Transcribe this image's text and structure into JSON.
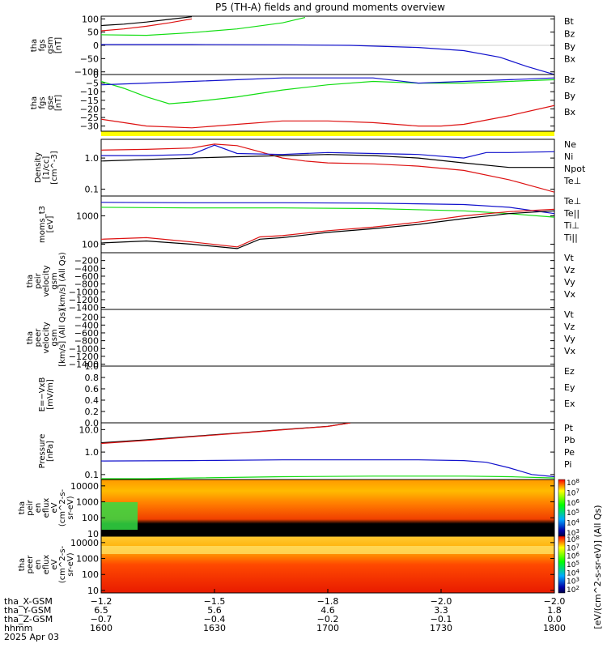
{
  "title": "P5 (TH-A) fields and ground moments overview",
  "colors": {
    "black": "#000000",
    "red": "#dd1111",
    "green": "#11dd11",
    "blue": "#1111cc",
    "yellow": "#ffff00"
  },
  "chart_data": [
    {
      "type": "line",
      "panel": "fgs_gsm",
      "ylabel_lines": [
        "tha",
        "fgs",
        "gsm",
        "[nT]"
      ],
      "ylim": [
        -110,
        110
      ],
      "yticks": [
        "100",
        "50",
        "0",
        "−50",
        "−100"
      ],
      "legend": [
        {
          "name": "Bt",
          "color": "black"
        },
        {
          "name": "Bz",
          "color": "red"
        },
        {
          "name": "By",
          "color": "green"
        },
        {
          "name": "Bx",
          "color": "blue"
        }
      ],
      "series": [
        {
          "name": "Bt",
          "color": "black",
          "x": [
            0,
            0.05,
            0.1,
            0.15,
            0.2
          ],
          "y": [
            75,
            80,
            88,
            98,
            108
          ]
        },
        {
          "name": "Bz",
          "color": "red",
          "x": [
            0,
            0.05,
            0.1,
            0.15,
            0.2
          ],
          "y": [
            55,
            62,
            72,
            85,
            100
          ]
        },
        {
          "name": "By",
          "color": "green",
          "x": [
            0,
            0.1,
            0.2,
            0.3,
            0.4,
            0.45
          ],
          "y": [
            40,
            38,
            48,
            62,
            85,
            105
          ]
        },
        {
          "name": "Bx",
          "color": "blue",
          "x": [
            0,
            0.2,
            0.4,
            0.55,
            0.7,
            0.8,
            0.88,
            0.94,
            1.0
          ],
          "y": [
            3,
            3,
            2,
            0,
            -8,
            -20,
            -45,
            -80,
            -110
          ]
        }
      ]
    },
    {
      "type": "line",
      "panel": "fgs_gse",
      "ylabel_lines": [
        "tha",
        "fgs",
        "gse",
        "[nT]"
      ],
      "ylim": [
        -33,
        0
      ],
      "yticks": [
        "0",
        "−5",
        "−10",
        "−15",
        "−20",
        "−25",
        "−30"
      ],
      "legend": [
        {
          "name": "Bz",
          "color": "red"
        },
        {
          "name": "By",
          "color": "green"
        },
        {
          "name": "Bx",
          "color": "blue"
        }
      ],
      "series": [
        {
          "name": "Bz",
          "color": "red",
          "x": [
            0,
            0.05,
            0.1,
            0.2,
            0.3,
            0.4,
            0.5,
            0.6,
            0.7,
            0.75,
            0.8,
            0.9,
            1.0
          ],
          "y": [
            -26,
            -28,
            -30,
            -31,
            -29,
            -27,
            -27,
            -28,
            -30,
            -30,
            -29,
            -24,
            -18
          ]
        },
        {
          "name": "By",
          "color": "green",
          "x": [
            0,
            0.05,
            0.1,
            0.15,
            0.2,
            0.3,
            0.4,
            0.5,
            0.6,
            0.7,
            0.8,
            0.9,
            1.0
          ],
          "y": [
            -4,
            -8,
            -13,
            -17,
            -16,
            -13,
            -9,
            -6,
            -4,
            -5,
            -5,
            -4,
            -3
          ]
        },
        {
          "name": "Bx",
          "color": "blue",
          "x": [
            0,
            0.1,
            0.2,
            0.3,
            0.4,
            0.5,
            0.6,
            0.7,
            0.8,
            0.9,
            1.0
          ],
          "y": [
            -6,
            -5,
            -4,
            -3,
            -2,
            -2,
            -2,
            -5,
            -4,
            -3,
            -2
          ]
        }
      ]
    },
    {
      "type": "line",
      "panel": "density",
      "ylabel_lines": [
        "Density",
        "[1/cc]",
        "[cm^-3]"
      ],
      "scale": "log",
      "ylim": [
        0.06,
        4
      ],
      "yticks": [
        "1.0",
        "0.1"
      ],
      "legend": [
        {
          "name": "Ne",
          "color": "red"
        },
        {
          "name": "Ni",
          "color": "black"
        },
        {
          "name": "Npot",
          "color": "blue"
        },
        {
          "name": "Te⊥",
          "color": "red"
        }
      ],
      "series": [
        {
          "name": "Ne",
          "color": "red",
          "x": [
            0,
            0.1,
            0.2,
            0.25,
            0.3,
            0.35,
            0.4,
            0.45,
            0.5,
            0.6,
            0.7,
            0.8,
            0.9,
            1.0
          ],
          "y": [
            1.8,
            1.9,
            2.1,
            2.8,
            2.5,
            1.6,
            1.0,
            0.8,
            0.7,
            0.65,
            0.55,
            0.4,
            0.2,
            0.08
          ]
        },
        {
          "name": "Ni",
          "color": "black",
          "x": [
            0,
            0.1,
            0.2,
            0.3,
            0.4,
            0.5,
            0.6,
            0.7,
            0.8,
            0.9,
            1.0
          ],
          "y": [
            0.8,
            0.9,
            1.0,
            1.1,
            1.2,
            1.3,
            1.2,
            1.0,
            0.7,
            0.5,
            0.5
          ]
        },
        {
          "name": "Npot",
          "color": "blue",
          "x": [
            0,
            0.1,
            0.2,
            0.25,
            0.3,
            0.4,
            0.5,
            0.6,
            0.7,
            0.8,
            0.85,
            0.9,
            1.0
          ],
          "y": [
            1.2,
            1.2,
            1.3,
            2.6,
            1.4,
            1.3,
            1.5,
            1.4,
            1.3,
            1.0,
            1.5,
            1.5,
            1.6
          ]
        }
      ]
    },
    {
      "type": "line",
      "panel": "moms_t3",
      "ylabel_lines": [
        "moms_t3",
        "[eV]"
      ],
      "scale": "log",
      "ylim": [
        50,
        5000
      ],
      "yticks": [
        "1000",
        "100"
      ],
      "legend": [
        {
          "name": "Te⊥",
          "color": "red"
        },
        {
          "name": "Te||",
          "color": "black"
        },
        {
          "name": "Ti⊥",
          "color": "blue"
        },
        {
          "name": "Ti||",
          "color": "green"
        }
      ],
      "series": [
        {
          "name": "Ti⊥",
          "color": "blue",
          "x": [
            0,
            0.2,
            0.4,
            0.6,
            0.8,
            0.9,
            1.0
          ],
          "y": [
            3000,
            2900,
            2900,
            2800,
            2500,
            2000,
            1200
          ]
        },
        {
          "name": "Ti||",
          "color": "green",
          "x": [
            0,
            0.2,
            0.4,
            0.6,
            0.8,
            0.9,
            1.0
          ],
          "y": [
            2000,
            1900,
            1900,
            1800,
            1500,
            1200,
            900
          ]
        },
        {
          "name": "Te⊥",
          "color": "red",
          "x": [
            0,
            0.1,
            0.2,
            0.3,
            0.35,
            0.4,
            0.5,
            0.6,
            0.7,
            0.8,
            0.9,
            1.0
          ],
          "y": [
            150,
            170,
            120,
            80,
            180,
            200,
            300,
            400,
            600,
            1000,
            1400,
            1700
          ]
        },
        {
          "name": "Te||",
          "color": "black",
          "x": [
            0,
            0.1,
            0.2,
            0.3,
            0.35,
            0.4,
            0.5,
            0.6,
            0.7,
            0.8,
            0.9,
            1.0
          ],
          "y": [
            110,
            130,
            100,
            70,
            150,
            170,
            260,
            350,
            500,
            800,
            1200,
            1500
          ]
        }
      ]
    },
    {
      "type": "line",
      "panel": "peir_velocity",
      "ylabel_lines": [
        "tha",
        "peir",
        "velocity",
        "gsm",
        "[km/s] (All Qs)"
      ],
      "ylim": [
        -1450,
        0
      ],
      "yticks": [
        "−200",
        "−400",
        "−600",
        "−800",
        "−1000",
        "−1200",
        "−1400"
      ],
      "legend": [
        {
          "name": "Vt",
          "color": "black"
        },
        {
          "name": "Vz",
          "color": "red"
        },
        {
          "name": "Vy",
          "color": "green"
        },
        {
          "name": "Vx",
          "color": "blue"
        }
      ],
      "series": []
    },
    {
      "type": "line",
      "panel": "peer_velocity",
      "ylabel_lines": [
        "tha",
        "peer",
        "velocity",
        "gsm",
        "[km/s] (All Qs)"
      ],
      "ylim": [
        -1450,
        0
      ],
      "yticks": [
        "−200",
        "−400",
        "−600",
        "−800",
        "−1000",
        "−1200",
        "−1400"
      ],
      "legend": [
        {
          "name": "Vt",
          "color": "black"
        },
        {
          "name": "Vz",
          "color": "red"
        },
        {
          "name": "Vy",
          "color": "green"
        },
        {
          "name": "Vx",
          "color": "blue"
        }
      ],
      "series": []
    },
    {
      "type": "line",
      "panel": "e_field",
      "ylabel_lines": [
        "E=−VxB",
        "[mV/m]"
      ],
      "ylim": [
        0,
        1
      ],
      "yticks": [
        "1.0",
        "0.8",
        "0.6",
        "0.4",
        "0.2",
        "0.0"
      ],
      "legend": [
        {
          "name": "Ez",
          "color": "red"
        },
        {
          "name": "Ey",
          "color": "green"
        },
        {
          "name": "Ex",
          "color": "blue"
        }
      ],
      "series": []
    },
    {
      "type": "line",
      "panel": "pressure",
      "ylabel_lines": [
        "Pressure",
        "[nPa]"
      ],
      "scale": "log",
      "ylim": [
        0.06,
        20
      ],
      "yticks": [
        "10.0",
        "1.0",
        "0.1"
      ],
      "legend": [
        {
          "name": "Pt",
          "color": "black"
        },
        {
          "name": "Pb",
          "color": "red"
        },
        {
          "name": "Pe",
          "color": "green"
        },
        {
          "name": "Pi",
          "color": "blue"
        }
      ],
      "series": [
        {
          "name": "Pt",
          "color": "black",
          "x": [
            0,
            0.1,
            0.2,
            0.3,
            0.4,
            0.5,
            0.55
          ],
          "y": [
            2.6,
            3.5,
            5,
            7,
            10,
            14,
            20
          ]
        },
        {
          "name": "Pb",
          "color": "red",
          "x": [
            0,
            0.1,
            0.2,
            0.3,
            0.4,
            0.5,
            0.55
          ],
          "y": [
            2.4,
            3.3,
            4.8,
            6.8,
            9.8,
            13.8,
            20
          ]
        },
        {
          "name": "Pe",
          "color": "green",
          "x": [
            0,
            0.1,
            0.2,
            0.4,
            0.6,
            0.8,
            0.9,
            1.0
          ],
          "y": [
            0.065,
            0.065,
            0.07,
            0.08,
            0.085,
            0.085,
            0.08,
            0.07
          ]
        },
        {
          "name": "Pi",
          "color": "blue",
          "x": [
            0,
            0.2,
            0.4,
            0.6,
            0.7,
            0.8,
            0.85,
            0.9,
            0.95,
            1.0
          ],
          "y": [
            0.4,
            0.42,
            0.45,
            0.45,
            0.45,
            0.42,
            0.35,
            0.2,
            0.1,
            0.08
          ]
        }
      ]
    },
    {
      "type": "heatmap",
      "panel": "peir_en_eflux",
      "ylabel_lines": [
        "tha",
        "peir",
        "en",
        "eflux",
        "eV",
        "(cm^2-s-",
        "sr-eV)"
      ],
      "scale": "log",
      "ylim": [
        7,
        25000
      ],
      "yticks": [
        "10000",
        "1000",
        "100",
        "10"
      ],
      "colorbar_ticks": [
        "10^8",
        "10^7",
        "10^6",
        "10^5",
        "10^4",
        "10^3"
      ]
    },
    {
      "type": "heatmap",
      "panel": "peer_en_eflux",
      "ylabel_lines": [
        "tha",
        "peer",
        "en",
        "eflux",
        "eV",
        "(cm^2-s-",
        "sr-eV)"
      ],
      "scale": "log",
      "ylim": [
        7,
        25000
      ],
      "yticks": [
        "10000",
        "1000",
        "100",
        "10"
      ],
      "colorbar_ticks": [
        "10^8",
        "10^7",
        "10^6",
        "10^5",
        "10^4",
        "10^3",
        "10^2"
      ]
    }
  ],
  "colorbar_label": "[eV/(cm^2-s-sr-eV)] (All Qs)",
  "xaxis": {
    "rows": [
      {
        "label": "tha_X-GSM",
        "values": [
          "−1.2",
          "−1.5",
          "−1.8",
          "−2.0",
          "−2.0"
        ]
      },
      {
        "label": "tha_Y-GSM",
        "values": [
          "6.5",
          "5.6",
          "4.6",
          "3.3",
          "1.8"
        ]
      },
      {
        "label": "tha_Z-GSM",
        "values": [
          "−0.7",
          "−0.4",
          "−0.2",
          "−0.1",
          "0.0"
        ]
      },
      {
        "label": "hhmm",
        "values": [
          "1600",
          "1630",
          "1700",
          "1730",
          "1800"
        ]
      }
    ],
    "date": "2025 Apr 03"
  }
}
